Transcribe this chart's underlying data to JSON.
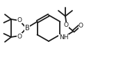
{
  "bg_color": "#ffffff",
  "line_color": "#1a1a1a",
  "line_width": 1.3,
  "font_size": 6.5,
  "figsize": [
    1.64,
    0.83
  ],
  "dpi": 100,
  "xlim": [
    0,
    164
  ],
  "ylim": [
    0,
    83
  ]
}
